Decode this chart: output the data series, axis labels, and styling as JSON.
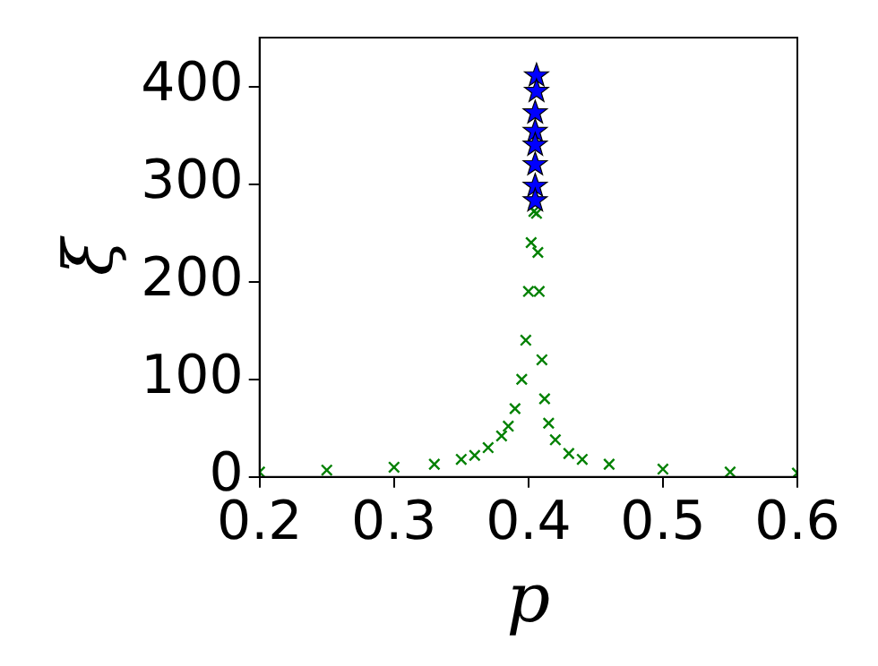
{
  "chart_data": {
    "type": "scatter",
    "xlabel": "p",
    "ylabel": "ξ",
    "xlim": [
      0.2,
      0.6
    ],
    "ylim": [
      0,
      450
    ],
    "xticks": [
      0.2,
      0.3,
      0.4,
      0.5,
      0.6
    ],
    "yticks": [
      0,
      100,
      200,
      300,
      400
    ],
    "grid": false,
    "legend": false,
    "series": [
      {
        "color": "#008000",
        "marker": "cross",
        "x": [
          0.2,
          0.25,
          0.3,
          0.33,
          0.35,
          0.36,
          0.37,
          0.38,
          0.385,
          0.39,
          0.395,
          0.398,
          0.4,
          0.402,
          0.404,
          0.406,
          0.407,
          0.408,
          0.41,
          0.412,
          0.415,
          0.42,
          0.43,
          0.44,
          0.46,
          0.5,
          0.55,
          0.6
        ],
        "values": [
          5,
          7,
          10,
          13,
          18,
          22,
          30,
          42,
          52,
          70,
          100,
          140,
          190,
          240,
          272,
          270,
          230,
          190,
          120,
          80,
          55,
          38,
          24,
          18,
          13,
          8,
          5,
          4
        ]
      },
      {
        "color": "#0000ff",
        "marker": "star",
        "x": [
          0.406,
          0.406,
          0.405,
          0.405,
          0.405,
          0.405,
          0.405,
          0.405
        ],
        "values": [
          411,
          395,
          373,
          354,
          340,
          320,
          298,
          283
        ]
      }
    ]
  }
}
